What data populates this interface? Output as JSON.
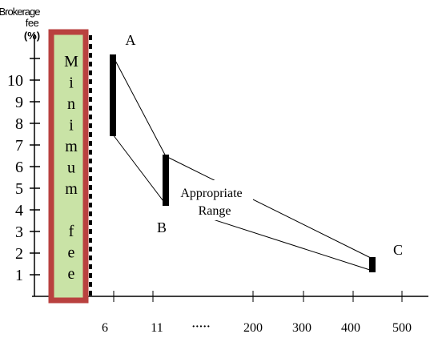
{
  "chart_data": {
    "type": "line",
    "ylabel": "Brokerage fee (%)",
    "ylabel_lines": [
      "Brokerage",
      "fee",
      "(%)"
    ],
    "y_ticks": [
      "1",
      "2",
      "3",
      "4",
      "5",
      "6",
      "7",
      "8",
      "9",
      "10"
    ],
    "x_ticks": [
      "6",
      "11",
      "·····",
      "200",
      "300",
      "400",
      "500"
    ],
    "minimum_fee_label": "Minimum fee",
    "minimum_fee_letters": [
      "M",
      "i",
      "n",
      "i",
      "m",
      "u",
      "m",
      "",
      "f",
      "e",
      "e"
    ],
    "points": [
      {
        "label": "A",
        "x": 6,
        "y_low": 7.5,
        "y_high": 11.2
      },
      {
        "label": "B",
        "x": 11,
        "y_low": 4.3,
        "y_high": 6.6
      },
      {
        "label": "C",
        "x": 500,
        "y_low": 1.2,
        "y_high": 1.8
      }
    ],
    "range_label_lines": [
      "Appropriate",
      "Range"
    ],
    "colors": {
      "minimum_fee_fill": "#c9e3a6",
      "minimum_fee_border": "#b9413f",
      "axis": "#000000",
      "bars": "#000000"
    }
  }
}
